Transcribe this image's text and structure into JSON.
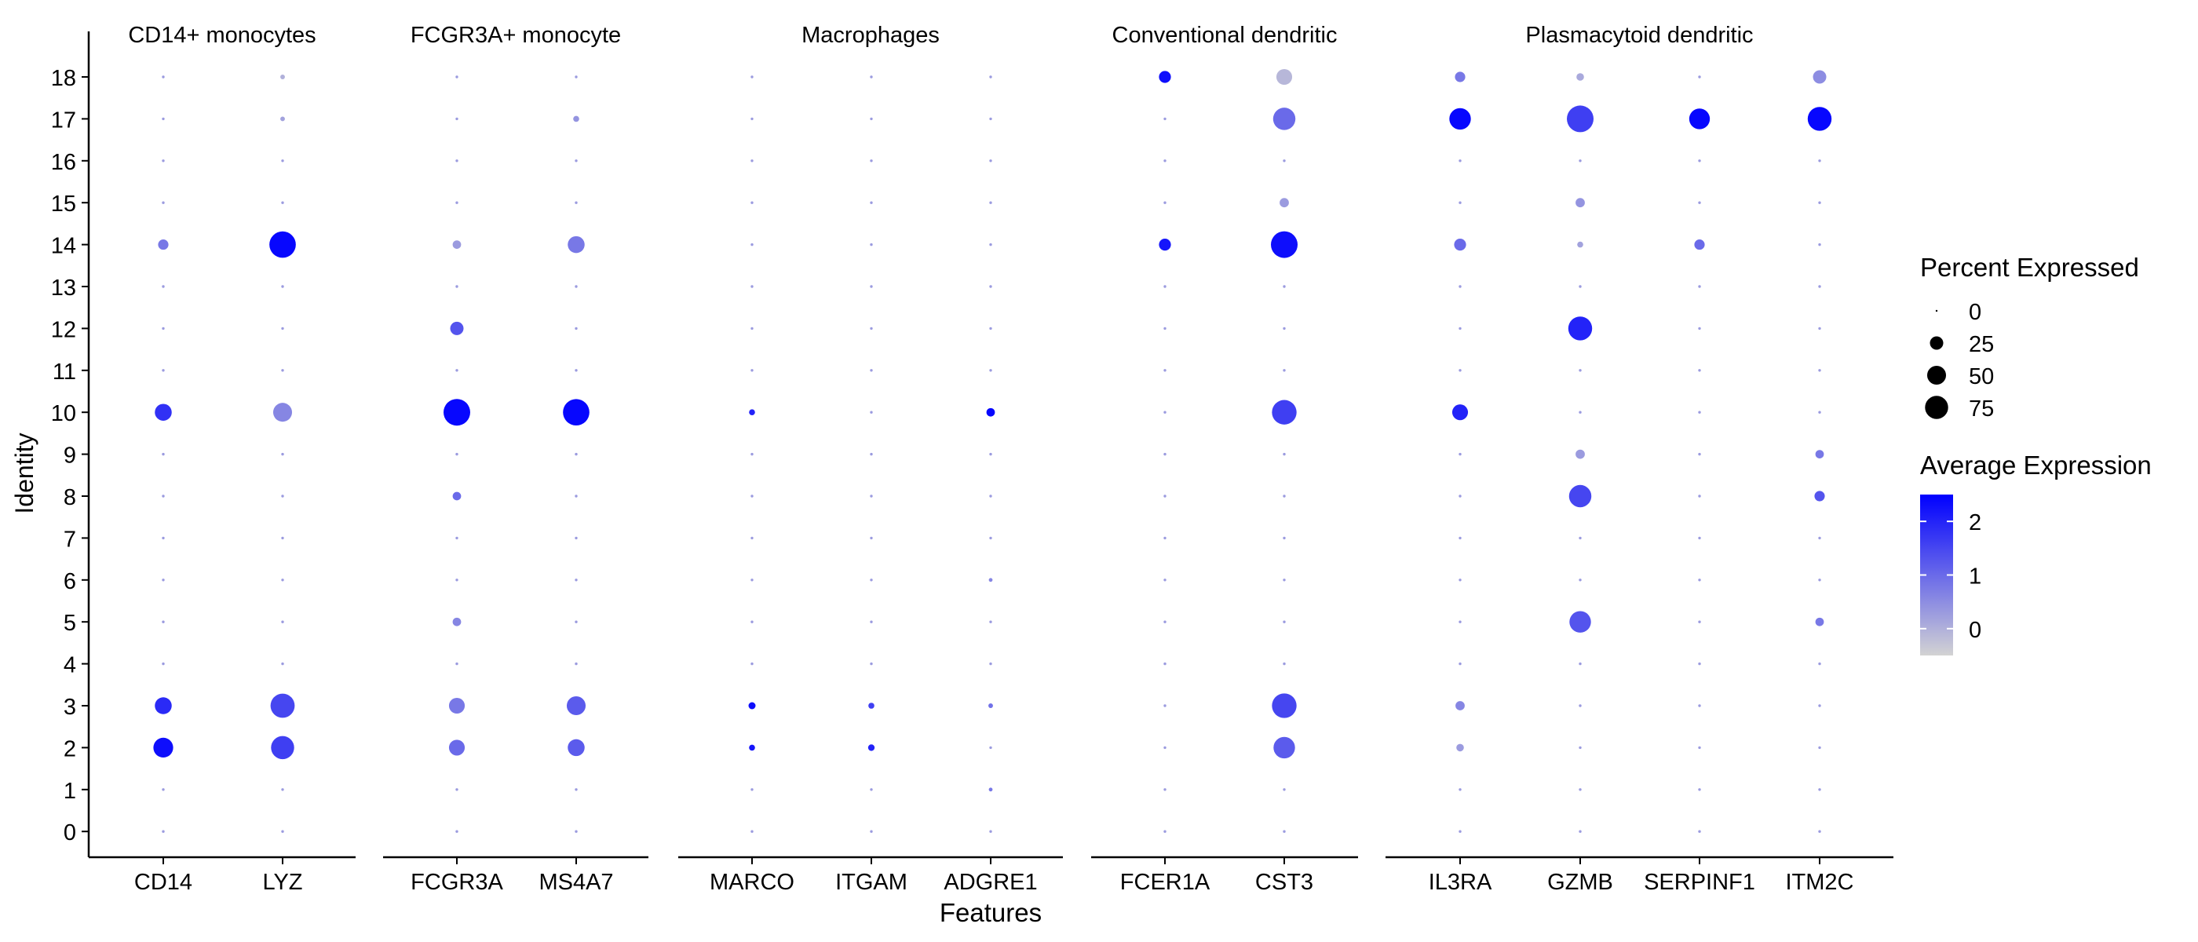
{
  "chart_data": {
    "type": "dotplot",
    "xlabel": "Features",
    "ylabel": "Identity",
    "identities": [
      "0",
      "1",
      "2",
      "3",
      "4",
      "5",
      "6",
      "7",
      "8",
      "9",
      "10",
      "11",
      "12",
      "13",
      "14",
      "15",
      "16",
      "17",
      "18"
    ],
    "panels": [
      {
        "title": "CD14+ monocytes",
        "genes": [
          "CD14",
          "LYZ"
        ]
      },
      {
        "title": "FCGR3A+ monocyte",
        "genes": [
          "FCGR3A",
          "MS4A7"
        ]
      },
      {
        "title": "Macrophages",
        "genes": [
          "MARCO",
          "ITGAM",
          "ADGRE1"
        ]
      },
      {
        "title": "Conventional dendritic",
        "genes": [
          "FCER1A",
          "CST3"
        ]
      },
      {
        "title": "Plasmacytoid dendritic",
        "genes": [
          "IL3RA",
          "GZMB",
          "SERPINF1",
          "ITM2C"
        ]
      }
    ],
    "dots": [
      {
        "gene": "CD14",
        "identity": "2",
        "pct": 55,
        "avg": 2.3
      },
      {
        "gene": "CD14",
        "identity": "3",
        "pct": 40,
        "avg": 1.9
      },
      {
        "gene": "CD14",
        "identity": "10",
        "pct": 40,
        "avg": 1.8
      },
      {
        "gene": "CD14",
        "identity": "14",
        "pct": 15,
        "avg": 0.8
      },
      {
        "gene": "LYZ",
        "identity": "2",
        "pct": 75,
        "avg": 1.6
      },
      {
        "gene": "LYZ",
        "identity": "3",
        "pct": 82,
        "avg": 1.5
      },
      {
        "gene": "LYZ",
        "identity": "10",
        "pct": 50,
        "avg": 0.6
      },
      {
        "gene": "LYZ",
        "identity": "14",
        "pct": 98,
        "avg": 2.4
      },
      {
        "gene": "LYZ",
        "identity": "17",
        "pct": 3,
        "avg": 0.2
      },
      {
        "gene": "LYZ",
        "identity": "18",
        "pct": 3,
        "avg": 0.0
      },
      {
        "gene": "FCGR3A",
        "identity": "2",
        "pct": 35,
        "avg": 1.0
      },
      {
        "gene": "FCGR3A",
        "identity": "3",
        "pct": 35,
        "avg": 0.8
      },
      {
        "gene": "FCGR3A",
        "identity": "5",
        "pct": 10,
        "avg": 0.6
      },
      {
        "gene": "FCGR3A",
        "identity": "8",
        "pct": 10,
        "avg": 1.0
      },
      {
        "gene": "FCGR3A",
        "identity": "10",
        "pct": 100,
        "avg": 2.4
      },
      {
        "gene": "FCGR3A",
        "identity": "12",
        "pct": 25,
        "avg": 1.3
      },
      {
        "gene": "FCGR3A",
        "identity": "14",
        "pct": 10,
        "avg": 0.3
      },
      {
        "gene": "MS4A7",
        "identity": "2",
        "pct": 40,
        "avg": 1.2
      },
      {
        "gene": "MS4A7",
        "identity": "3",
        "pct": 50,
        "avg": 1.2
      },
      {
        "gene": "MS4A7",
        "identity": "10",
        "pct": 98,
        "avg": 2.4
      },
      {
        "gene": "MS4A7",
        "identity": "14",
        "pct": 40,
        "avg": 0.8
      },
      {
        "gene": "MS4A7",
        "identity": "17",
        "pct": 5,
        "avg": 0.4
      },
      {
        "gene": "MARCO",
        "identity": "2",
        "pct": 5,
        "avg": 2.2
      },
      {
        "gene": "MARCO",
        "identity": "3",
        "pct": 7,
        "avg": 2.3
      },
      {
        "gene": "MARCO",
        "identity": "10",
        "pct": 5,
        "avg": 2.0
      },
      {
        "gene": "ITGAM",
        "identity": "2",
        "pct": 6,
        "avg": 2.0
      },
      {
        "gene": "ITGAM",
        "identity": "3",
        "pct": 5,
        "avg": 1.6
      },
      {
        "gene": "ADGRE1",
        "identity": "1",
        "pct": 2,
        "avg": 0.8
      },
      {
        "gene": "ADGRE1",
        "identity": "3",
        "pct": 3,
        "avg": 0.9
      },
      {
        "gene": "ADGRE1",
        "identity": "6",
        "pct": 2,
        "avg": 0.6
      },
      {
        "gene": "ADGRE1",
        "identity": "10",
        "pct": 10,
        "avg": 2.4
      },
      {
        "gene": "FCER1A",
        "identity": "14",
        "pct": 20,
        "avg": 2.2
      },
      {
        "gene": "FCER1A",
        "identity": "18",
        "pct": 20,
        "avg": 2.3
      },
      {
        "gene": "CST3",
        "identity": "2",
        "pct": 65,
        "avg": 1.2
      },
      {
        "gene": "CST3",
        "identity": "3",
        "pct": 85,
        "avg": 1.5
      },
      {
        "gene": "CST3",
        "identity": "10",
        "pct": 85,
        "avg": 1.6
      },
      {
        "gene": "CST3",
        "identity": "14",
        "pct": 100,
        "avg": 2.3
      },
      {
        "gene": "CST3",
        "identity": "15",
        "pct": 12,
        "avg": 0.3
      },
      {
        "gene": "CST3",
        "identity": "17",
        "pct": 70,
        "avg": 1.0
      },
      {
        "gene": "CST3",
        "identity": "18",
        "pct": 35,
        "avg": -0.1
      },
      {
        "gene": "IL3RA",
        "identity": "2",
        "pct": 8,
        "avg": 0.3
      },
      {
        "gene": "IL3RA",
        "identity": "3",
        "pct": 12,
        "avg": 0.6
      },
      {
        "gene": "IL3RA",
        "identity": "10",
        "pct": 35,
        "avg": 2.0
      },
      {
        "gene": "IL3RA",
        "identity": "14",
        "pct": 20,
        "avg": 1.0
      },
      {
        "gene": "IL3RA",
        "identity": "18",
        "pct": 15,
        "avg": 0.8
      },
      {
        "gene": "IL3RA",
        "identity": "17",
        "pct": 65,
        "avg": 2.4
      },
      {
        "gene": "GZMB",
        "identity": "5",
        "pct": 65,
        "avg": 1.3
      },
      {
        "gene": "GZMB",
        "identity": "8",
        "pct": 70,
        "avg": 1.5
      },
      {
        "gene": "GZMB",
        "identity": "9",
        "pct": 12,
        "avg": 0.3
      },
      {
        "gene": "GZMB",
        "identity": "12",
        "pct": 80,
        "avg": 2.0
      },
      {
        "gene": "GZMB",
        "identity": "14",
        "pct": 5,
        "avg": 0.2
      },
      {
        "gene": "GZMB",
        "identity": "15",
        "pct": 12,
        "avg": 0.4
      },
      {
        "gene": "GZMB",
        "identity": "17",
        "pct": 100,
        "avg": 1.6
      },
      {
        "gene": "GZMB",
        "identity": "18",
        "pct": 8,
        "avg": 0.1
      },
      {
        "gene": "SERPINF1",
        "identity": "14",
        "pct": 15,
        "avg": 1.0
      },
      {
        "gene": "SERPINF1",
        "identity": "17",
        "pct": 60,
        "avg": 2.4
      },
      {
        "gene": "ITM2C",
        "identity": "5",
        "pct": 10,
        "avg": 0.8
      },
      {
        "gene": "ITM2C",
        "identity": "8",
        "pct": 15,
        "avg": 1.3
      },
      {
        "gene": "ITM2C",
        "identity": "9",
        "pct": 10,
        "avg": 0.8
      },
      {
        "gene": "ITM2C",
        "identity": "17",
        "pct": 80,
        "avg": 2.4
      },
      {
        "gene": "ITM2C",
        "identity": "18",
        "pct": 25,
        "avg": 0.5
      }
    ],
    "default_dot": {
      "pct": 1,
      "avg": 0.3
    },
    "size_legend": {
      "title": "Percent Expressed",
      "values": [
        0,
        25,
        50,
        75
      ]
    },
    "color_legend": {
      "title": "Average Expression",
      "ticks": [
        2,
        1,
        0
      ],
      "range": [
        -0.5,
        2.5
      ],
      "low": "#d3d3d3",
      "high": "#0000ff"
    },
    "max_pct": 100
  }
}
